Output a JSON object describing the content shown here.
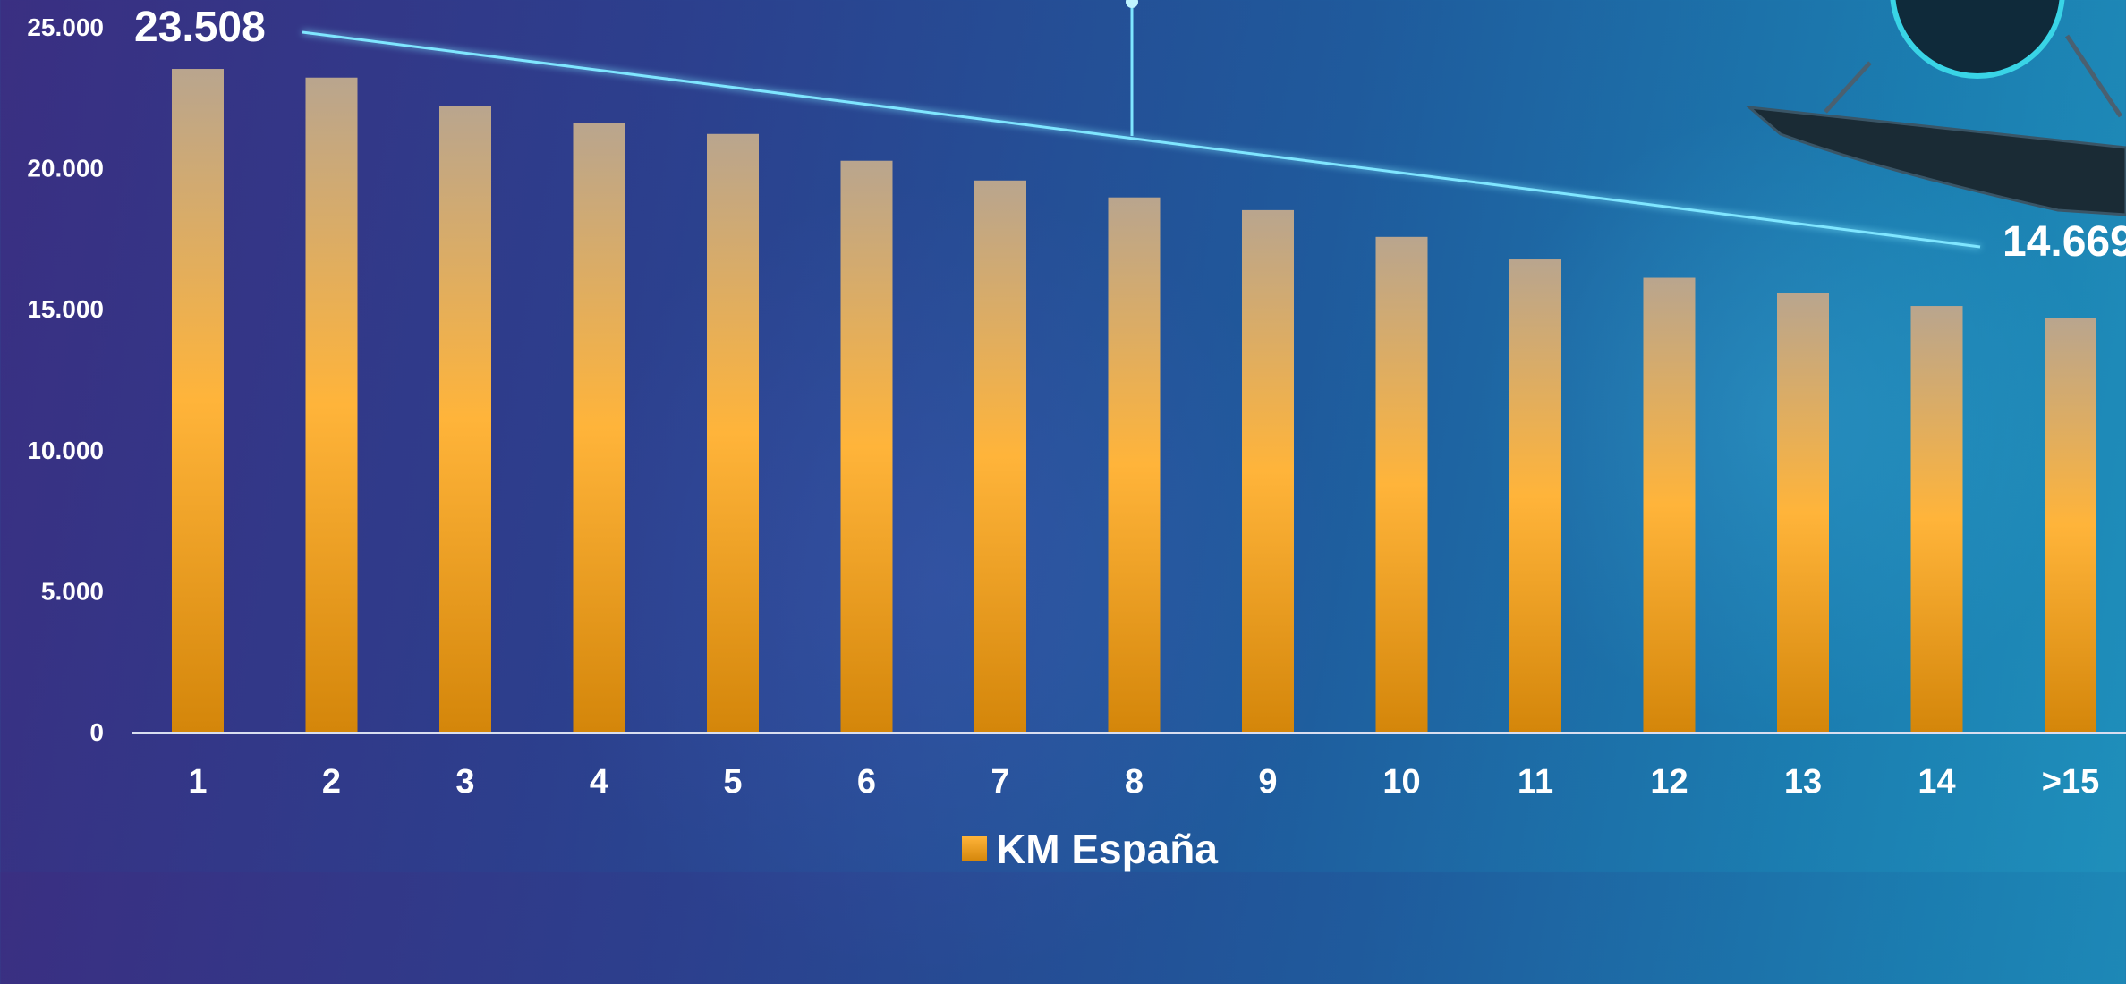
{
  "chart_data": {
    "type": "bar",
    "categories": [
      "1",
      "2",
      "3",
      "4",
      "5",
      "6",
      "7",
      "8",
      "9",
      "10",
      "11",
      "12",
      "13",
      "14",
      ">15"
    ],
    "series": [
      {
        "name": "KM España",
        "values": [
          23508,
          23200,
          22200,
          21600,
          21200,
          20250,
          19550,
          18950,
          18500,
          17550,
          16750,
          16100,
          15550,
          15100,
          14669
        ]
      }
    ],
    "ylim": [
      0,
      25000
    ],
    "yticks": [
      "0",
      "5.000",
      "10.000",
      "15.000",
      "20.000",
      "25.000"
    ],
    "ytick_values": [
      0,
      5000,
      10000,
      15000,
      20000,
      25000
    ],
    "annotations": {
      "start_value": "23.508",
      "end_value": "14.669"
    },
    "trendline": {
      "from": 23508,
      "to": 14669
    },
    "legend_position": "bottom-center",
    "grid": false,
    "colors": {
      "bar_top": "#b9a58e",
      "bar_mid": "#ffb43a",
      "bar_bottom": "#d4860a",
      "trendline": "#7fe6ff",
      "axis": "#d9def0"
    }
  }
}
